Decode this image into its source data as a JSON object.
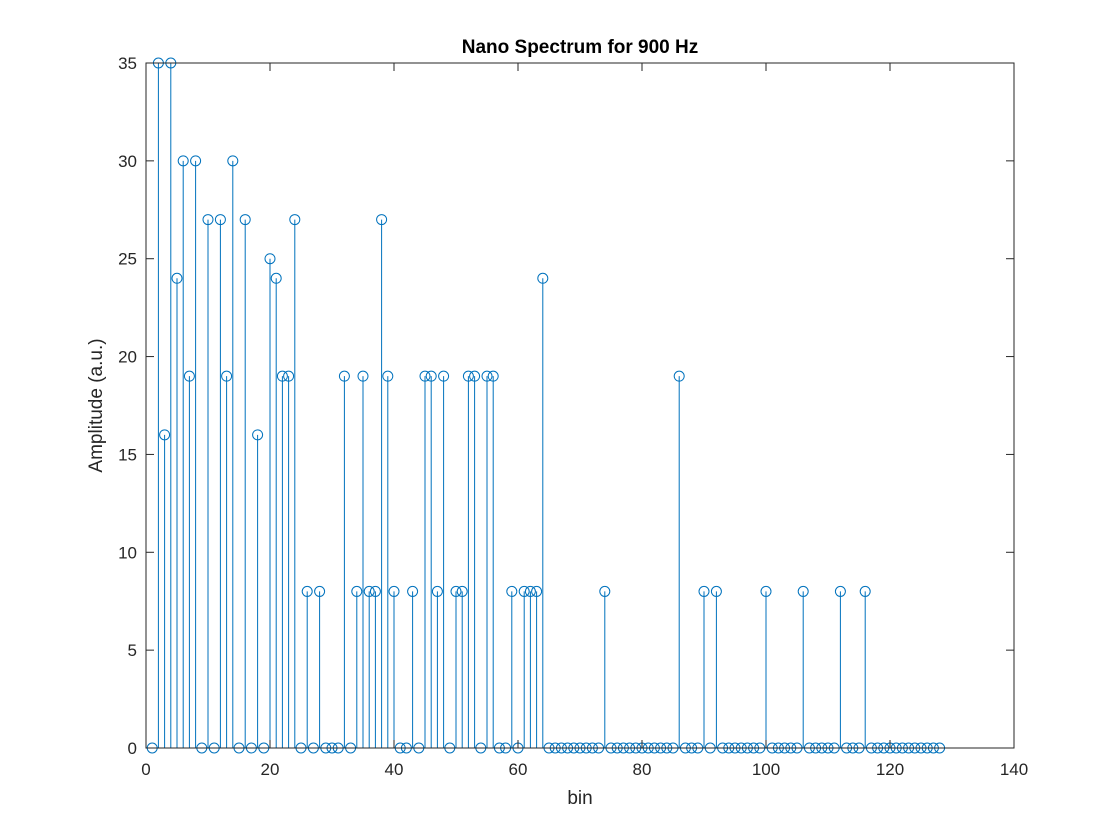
{
  "chart_data": {
    "type": "stem",
    "title": "Nano Spectrum for 900 Hz",
    "xlabel": "bin",
    "ylabel": "Amplitude (a.u.)",
    "xlim": [
      0,
      140
    ],
    "ylim": [
      0,
      35
    ],
    "xticks": [
      0,
      20,
      40,
      60,
      80,
      100,
      120,
      140
    ],
    "yticks": [
      0,
      5,
      10,
      15,
      20,
      25,
      30,
      35
    ],
    "grid": false,
    "marker": "circle-open",
    "colors": {
      "stem": "#0072bd",
      "axis": "#262626"
    },
    "x_start": 1,
    "values": [
      0,
      35,
      16,
      35,
      24,
      30,
      19,
      30,
      0,
      27,
      0,
      27,
      19,
      30,
      0,
      27,
      0,
      16,
      0,
      25,
      24,
      19,
      19,
      27,
      0,
      8,
      0,
      8,
      0,
      0,
      0,
      19,
      0,
      8,
      19,
      8,
      8,
      27,
      19,
      8,
      0,
      0,
      8,
      0,
      19,
      19,
      8,
      19,
      0,
      8,
      8,
      19,
      19,
      0,
      19,
      19,
      0,
      0,
      8,
      0,
      8,
      8,
      8,
      24,
      0,
      0,
      0,
      0,
      0,
      0,
      0,
      0,
      0,
      8,
      0,
      0,
      0,
      0,
      0,
      0,
      0,
      0,
      0,
      0,
      0,
      19,
      0,
      0,
      0,
      8,
      0,
      8,
      0,
      0,
      0,
      0,
      0,
      0,
      0,
      8,
      0,
      0,
      0,
      0,
      0,
      8,
      0,
      0,
      0,
      0,
      0,
      8,
      0,
      0,
      0,
      8,
      0,
      0,
      0,
      0,
      0,
      0,
      0,
      0,
      0,
      0,
      0,
      0
    ]
  }
}
